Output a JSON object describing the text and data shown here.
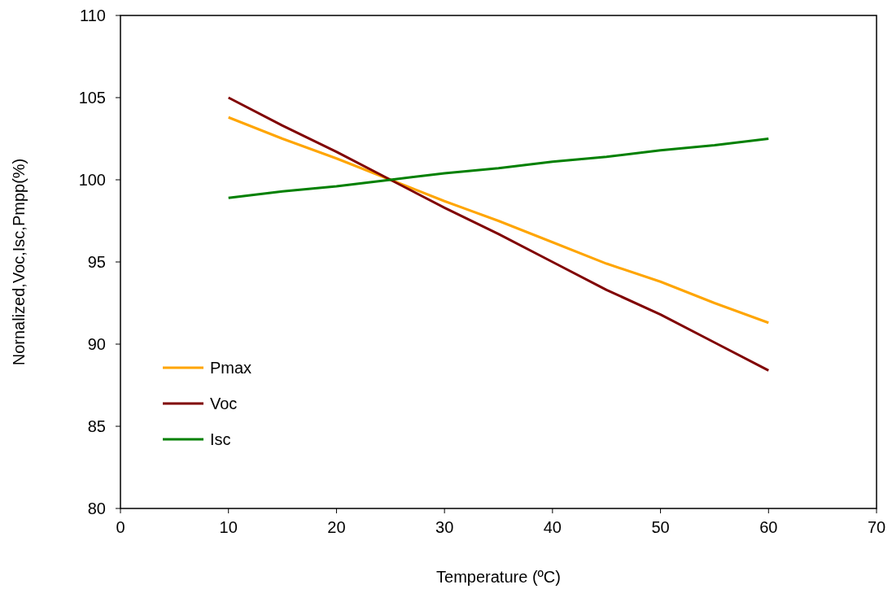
{
  "chart_data": {
    "type": "line",
    "xlabel": "Temperature (ºC)",
    "ylabel": "Nornalized,Voc,Isc,Pmpp(%)",
    "x": [
      10,
      15,
      20,
      25,
      30,
      35,
      40,
      45,
      50,
      55,
      60
    ],
    "series": [
      {
        "name": "Pmax",
        "color": "#ffa500",
        "values": [
          103.8,
          102.5,
          101.3,
          100,
          98.7,
          97.5,
          96.2,
          94.9,
          93.8,
          92.5,
          91.3
        ]
      },
      {
        "name": "Voc",
        "color": "#800000",
        "values": [
          105,
          103.3,
          101.7,
          100,
          98.3,
          96.7,
          95,
          93.3,
          91.8,
          90.1,
          88.4
        ]
      },
      {
        "name": "Isc",
        "color": "#008000",
        "values": [
          98.9,
          99.3,
          99.6,
          100,
          100.4,
          100.7,
          101.1,
          101.4,
          101.8,
          102.1,
          102.5
        ]
      }
    ],
    "xlim": [
      0,
      70
    ],
    "xticks": [
      0,
      10,
      20,
      30,
      40,
      50,
      60,
      70
    ],
    "ylim": [
      80,
      110
    ],
    "yticks": [
      80,
      85,
      90,
      95,
      100,
      105,
      110
    ],
    "grid": false,
    "legend": "bottom left",
    "marker": "none",
    "line_style": "solid"
  }
}
